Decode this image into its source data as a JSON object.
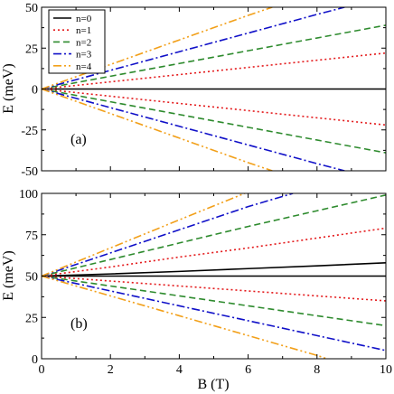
{
  "chart_data": [
    {
      "panel": "(a)",
      "type": "line",
      "ylabel": "E (meV)",
      "xlabel": "",
      "xlim": [
        0,
        10
      ],
      "ylim": [
        -50,
        50
      ],
      "xticks": [
        0,
        2,
        4,
        6,
        8,
        10
      ],
      "yticks": [
        -50,
        -25,
        0,
        25,
        50
      ],
      "ytick_labels": [
        "-50",
        "-25",
        "0",
        "25",
        "50"
      ],
      "legend": {
        "position": "top-left",
        "entries": [
          "n=0",
          "n=1",
          "n=2",
          "n=3",
          "n=4"
        ]
      },
      "series": [
        {
          "name": "n=0",
          "color": "#000000",
          "style": "solid",
          "x": [
            0,
            10
          ],
          "y": [
            0,
            0
          ]
        },
        {
          "name": "n=1",
          "color": "#e41a1c",
          "style": "dotted",
          "x": [
            0,
            2,
            4,
            6,
            8,
            10
          ],
          "y": [
            0,
            4.4,
            8.8,
            13.2,
            17.6,
            22
          ]
        },
        {
          "name": "n=1",
          "color": "#e41a1c",
          "style": "dotted",
          "x": [
            0,
            2,
            4,
            6,
            8,
            10
          ],
          "y": [
            0,
            -4.4,
            -8.8,
            -13.2,
            -17.6,
            -22
          ]
        },
        {
          "name": "n=2",
          "color": "#2e8b2e",
          "style": "dashed",
          "x": [
            0,
            2,
            4,
            6,
            8,
            10
          ],
          "y": [
            0,
            7.8,
            15.6,
            23.4,
            31.2,
            39
          ]
        },
        {
          "name": "n=2",
          "color": "#2e8b2e",
          "style": "dashed",
          "x": [
            0,
            2,
            4,
            6,
            8,
            10
          ],
          "y": [
            0,
            -7.8,
            -15.6,
            -23.4,
            -31.2,
            -39
          ]
        },
        {
          "name": "n=3",
          "color": "#1010c8",
          "style": "dashdot",
          "x": [
            0,
            2,
            4,
            6,
            8,
            8.8
          ],
          "y": [
            0,
            11.4,
            22.8,
            34.2,
            45.6,
            50
          ]
        },
        {
          "name": "n=3",
          "color": "#1010c8",
          "style": "dashdot",
          "x": [
            0,
            2,
            4,
            6,
            8,
            8.8
          ],
          "y": [
            0,
            -11.4,
            -22.8,
            -34.2,
            -45.6,
            -50
          ]
        },
        {
          "name": "n=4",
          "color": "#f2a01a",
          "style": "dashdotdot",
          "x": [
            0,
            2,
            4,
            6,
            6.7
          ],
          "y": [
            0,
            15,
            30,
            45,
            50
          ]
        },
        {
          "name": "n=4",
          "color": "#f2a01a",
          "style": "dashdotdot",
          "x": [
            0,
            2,
            4,
            6,
            6.7
          ],
          "y": [
            0,
            -15,
            -30,
            -45,
            -50
          ]
        }
      ]
    },
    {
      "panel": "(b)",
      "type": "line",
      "ylabel": "E (meV)",
      "xlabel": "B (T)",
      "xlim": [
        0,
        10
      ],
      "ylim": [
        0,
        100
      ],
      "xticks": [
        0,
        2,
        4,
        6,
        8,
        10
      ],
      "yticks": [
        0,
        25,
        50,
        75,
        100
      ],
      "xtick_labels": [
        "0",
        "2",
        "4",
        "6",
        "8",
        "10"
      ],
      "ytick_labels": [
        "0",
        "25",
        "50",
        "75",
        "100"
      ],
      "series": [
        {
          "name": "n=0",
          "color": "#000000",
          "style": "solid",
          "x": [
            0,
            10
          ],
          "y": [
            50,
            50
          ]
        },
        {
          "name": "n=0",
          "color": "#000000",
          "style": "solid",
          "x": [
            0,
            2,
            4,
            6,
            8,
            10
          ],
          "y": [
            50,
            51.3,
            52.8,
            54.5,
            56.2,
            58
          ]
        },
        {
          "name": "n=1",
          "color": "#e41a1c",
          "style": "dotted",
          "x": [
            0,
            2,
            4,
            6,
            8,
            10
          ],
          "y": [
            50,
            55.5,
            61.5,
            67,
            73,
            79
          ]
        },
        {
          "name": "n=1",
          "color": "#e41a1c",
          "style": "dotted",
          "x": [
            0,
            2,
            4,
            6,
            8,
            10
          ],
          "y": [
            50,
            47,
            44,
            41,
            38,
            35
          ]
        },
        {
          "name": "n=2",
          "color": "#2e8b2e",
          "style": "dashed",
          "x": [
            0,
            2,
            4,
            6,
            8,
            10
          ],
          "y": [
            50,
            60,
            70,
            80,
            89.5,
            99
          ]
        },
        {
          "name": "n=2",
          "color": "#2e8b2e",
          "style": "dashed",
          "x": [
            0,
            2,
            4,
            6,
            8,
            10
          ],
          "y": [
            50,
            44,
            38,
            32,
            26,
            20
          ]
        },
        {
          "name": "n=3",
          "color": "#1010c8",
          "style": "dashdot",
          "x": [
            0,
            2,
            4,
            6,
            7.3
          ],
          "y": [
            50,
            64,
            78,
            92,
            100
          ]
        },
        {
          "name": "n=3",
          "color": "#1010c8",
          "style": "dashdot",
          "x": [
            0,
            2,
            4,
            6,
            8,
            10
          ],
          "y": [
            50,
            41,
            32,
            23,
            14,
            5
          ]
        },
        {
          "name": "n=4",
          "color": "#f2a01a",
          "style": "dashdotdot",
          "x": [
            0,
            2,
            4,
            5.9
          ],
          "y": [
            50,
            67,
            84,
            100
          ]
        },
        {
          "name": "n=4",
          "color": "#f2a01a",
          "style": "dashdotdot",
          "x": [
            0,
            2,
            4,
            6,
            8,
            8.3
          ],
          "y": [
            50,
            38,
            26,
            14,
            2,
            0
          ]
        }
      ]
    }
  ]
}
